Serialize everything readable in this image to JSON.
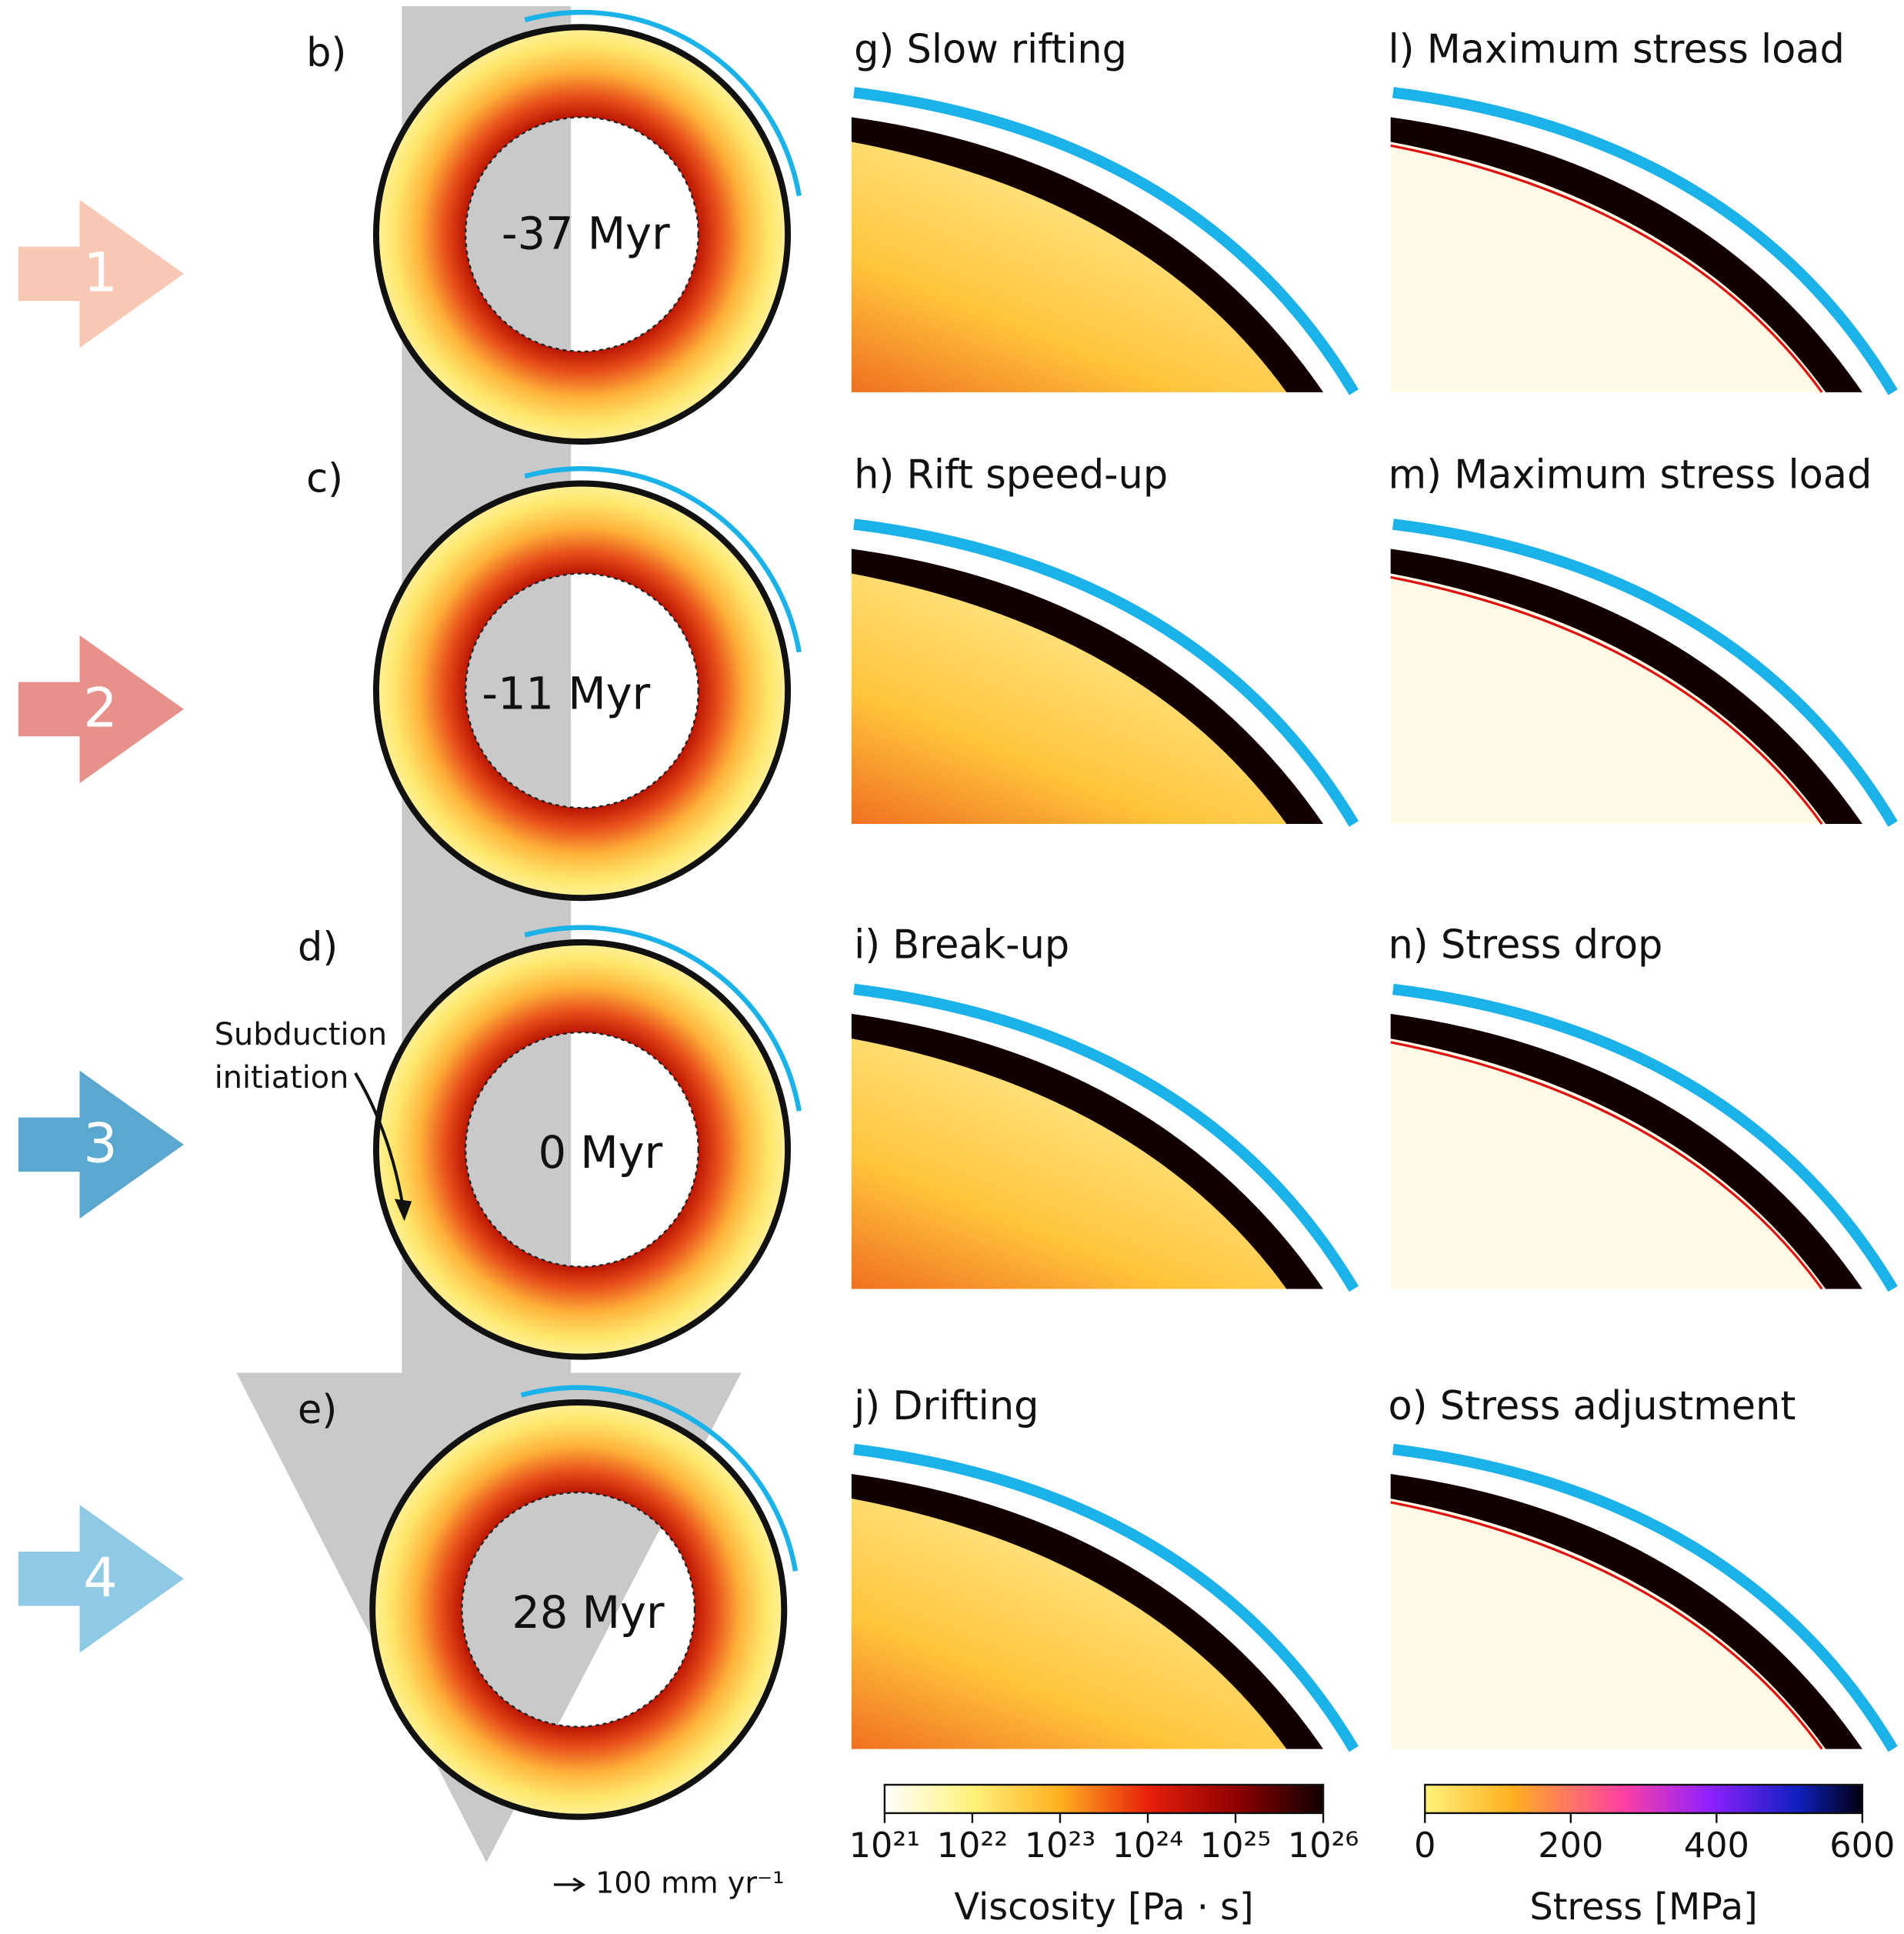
{
  "arrows": [
    "1",
    "2",
    "3",
    "4"
  ],
  "rings": [
    {
      "label": "b)",
      "time": "-37 Myr"
    },
    {
      "label": "c)",
      "time": "-11 Myr"
    },
    {
      "label": "d)",
      "time": "0 Myr"
    },
    {
      "label": "e)",
      "time": "28 Myr"
    }
  ],
  "annotation": {
    "lines": [
      "Subduction",
      "initiation"
    ]
  },
  "viscosity_panels": [
    "g) Slow rifting",
    "h) Rift speed-up",
    "i) Break-up",
    "j) Drifting"
  ],
  "stress_panels": [
    "l) Maximum stress load",
    "m) Maximum stress load",
    "n) Stress drop",
    "o) Stress adjustment"
  ],
  "viscosity_colorbar": {
    "label": "Viscosity [Pa · s]",
    "ticks": [
      "10²¹",
      "10²²",
      "10²³",
      "10²⁴",
      "10²⁵",
      "10²⁶"
    ]
  },
  "stress_colorbar": {
    "label": "Stress [MPa]",
    "ticks": [
      "0",
      "200",
      "400",
      "600"
    ]
  },
  "scale_label": "100 mm yr⁻¹"
}
